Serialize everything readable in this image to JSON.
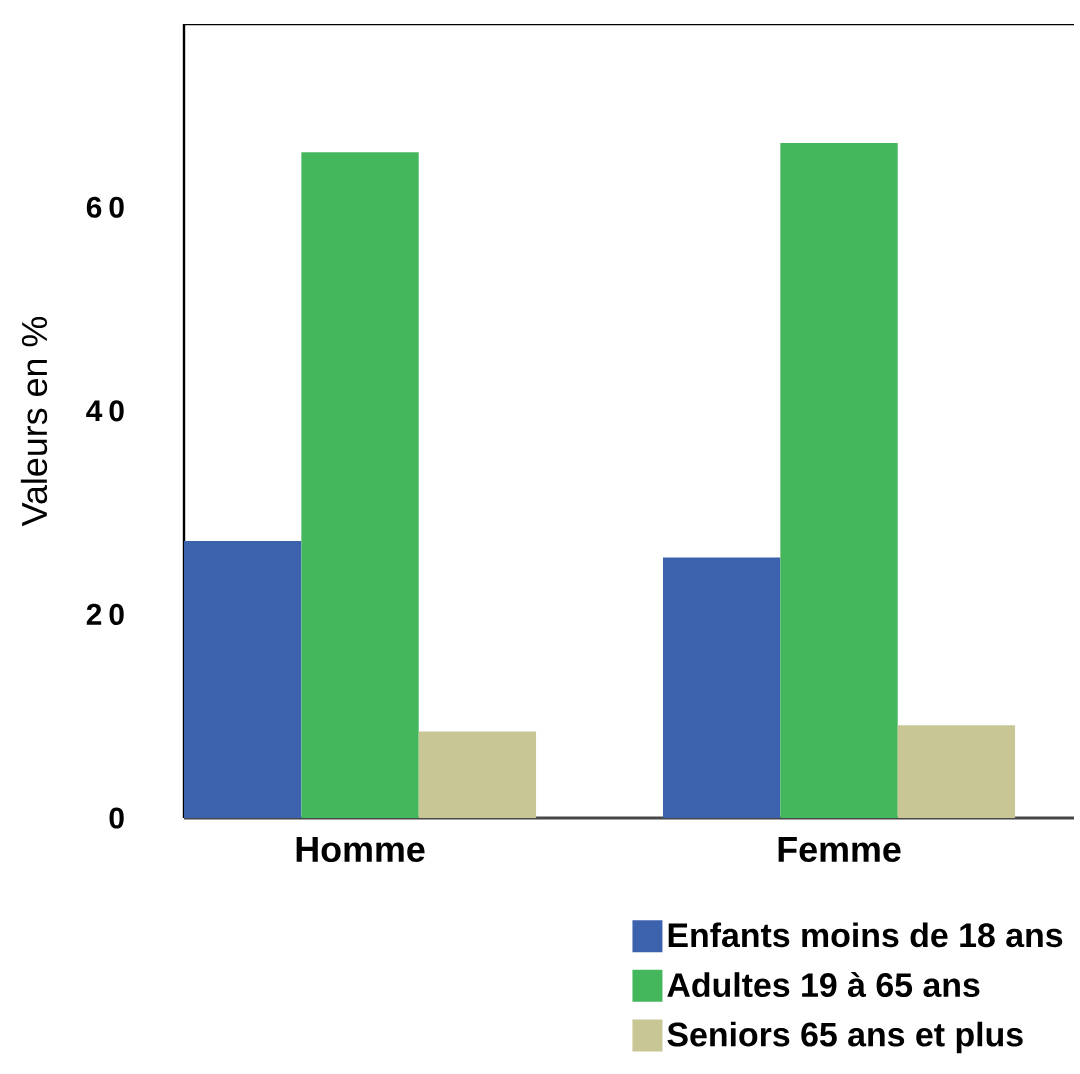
{
  "chart_data": {
    "type": "bar",
    "ylabel": "Valeurs en %",
    "categories": [
      "Homme",
      "Femme"
    ],
    "series": [
      {
        "name": "Enfants moins de 18 ans",
        "color": "#3d62ad",
        "values": [
          27.2,
          25.6
        ]
      },
      {
        "name": "Adultes 19 à 65 ans",
        "color": "#44b75c",
        "values": [
          65.4,
          66.3
        ]
      },
      {
        "name": "Seniors 65 ans et plus",
        "color": "#c9c695",
        "values": [
          8.5,
          9.1
        ]
      }
    ],
    "ylim": [
      0,
      78
    ],
    "yticks": [
      0,
      20,
      40,
      60
    ],
    "legend": "bottom right"
  }
}
